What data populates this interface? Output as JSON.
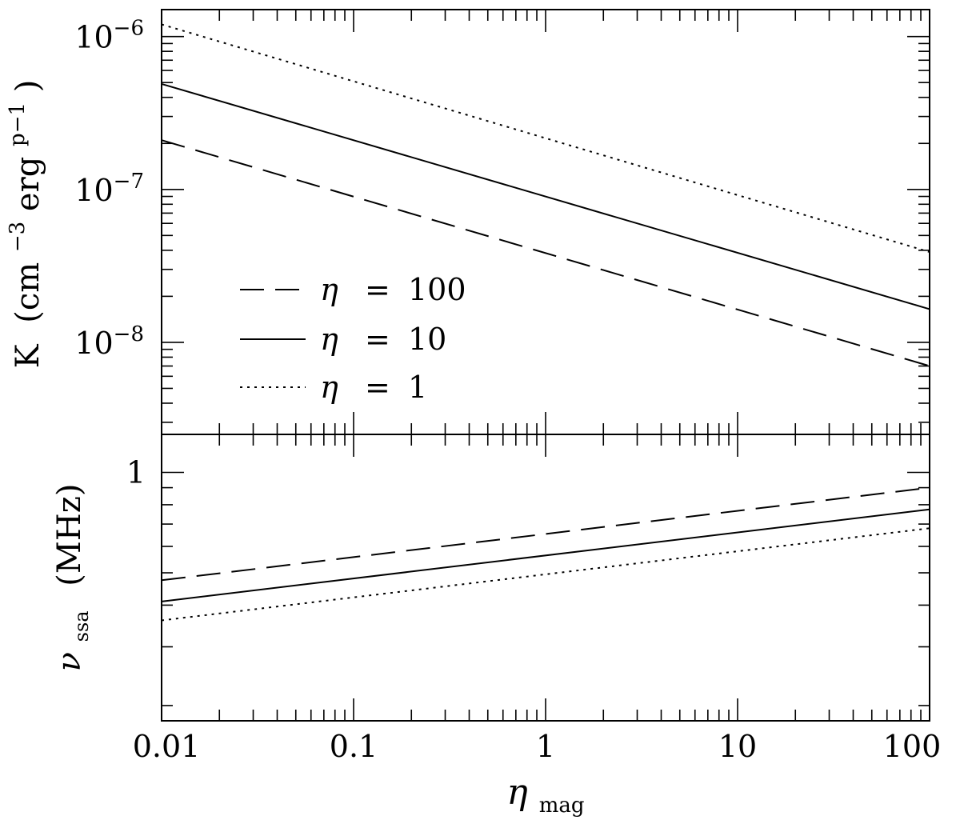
{
  "chart_data": [
    {
      "type": "line",
      "panel": "top",
      "x_scale": "log",
      "y_scale": "log",
      "xlim": [
        0.01,
        100
      ],
      "ylim": [
        2.5e-09,
        1.5e-06
      ],
      "ylabel_main": "K",
      "ylabel_units": "(cm",
      "ylabel_exp1": "−3",
      "ylabel_mid": "erg",
      "ylabel_exp2": "p−1",
      "ylabel_close": ")",
      "y_ticks": [
        {
          "value": 1e-06,
          "base": "10",
          "exp": "−6"
        },
        {
          "value": 1e-07,
          "base": "10",
          "exp": "−7"
        },
        {
          "value": 1e-08,
          "base": "10",
          "exp": "−8"
        }
      ],
      "legend_position": "bottom-left",
      "legend_symbol": "η",
      "legend_eq": "=",
      "series": [
        {
          "label": "100",
          "dash": "dashed",
          "x": [
            0.01,
            100
          ],
          "y": [
            2.1e-07,
            7e-09
          ]
        },
        {
          "label": "10",
          "dash": "solid",
          "x": [
            0.01,
            100
          ],
          "y": [
            4.9e-07,
            1.65e-08
          ]
        },
        {
          "label": "1",
          "dash": "dotted",
          "x": [
            0.01,
            100
          ],
          "y": [
            1.2e-06,
            3.9e-08
          ]
        }
      ]
    },
    {
      "type": "line",
      "panel": "bottom",
      "x_scale": "log",
      "y_scale": "log",
      "xlim": [
        0.01,
        100
      ],
      "ylim": [
        0.18,
        1.3
      ],
      "ylabel_symbol": "ν",
      "ylabel_sub": "ssa",
      "ylabel_units": "(MHz)",
      "y_ticks": [
        {
          "value": 1,
          "label": "1"
        }
      ],
      "xlabel_symbol": "η",
      "xlabel_sub": "mag",
      "x_ticks": [
        {
          "value": 0.01,
          "label": "0.01"
        },
        {
          "value": 0.1,
          "label": "0.1"
        },
        {
          "value": 1,
          "label": "1"
        },
        {
          "value": 10,
          "label": "10"
        },
        {
          "value": 100,
          "label": "100"
        }
      ],
      "series": [
        {
          "dash": "dashed",
          "x": [
            0.01,
            100
          ],
          "y": [
            0.475,
            0.9
          ]
        },
        {
          "dash": "solid",
          "x": [
            0.01,
            100
          ],
          "y": [
            0.41,
            0.775
          ]
        },
        {
          "dash": "dotted",
          "x": [
            0.01,
            100
          ],
          "y": [
            0.36,
            0.68
          ]
        }
      ]
    }
  ]
}
